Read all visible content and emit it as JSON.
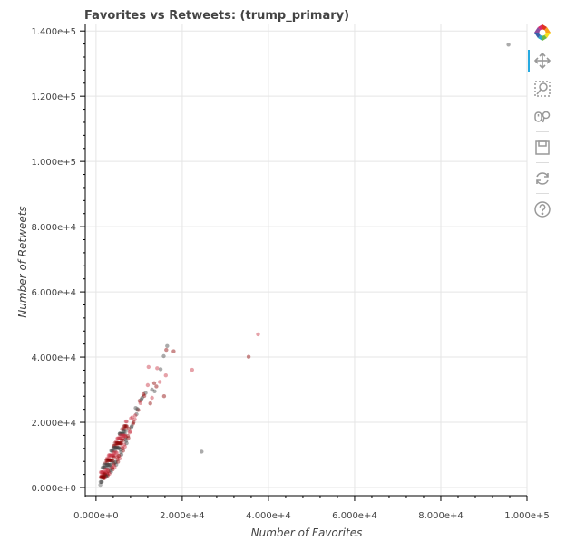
{
  "chart_data": {
    "type": "scatter",
    "title": "Favorites vs Retweets: (trump_primary)",
    "xlabel": "Number of Favorites",
    "ylabel": "Number of Retweets",
    "xlim": [
      -2500,
      100000
    ],
    "ylim": [
      -2500,
      142000
    ],
    "x_ticks": [
      0,
      20000,
      40000,
      60000,
      80000,
      100000
    ],
    "x_tick_labels": [
      "0.000e+0",
      "2.000e+4",
      "4.000e+4",
      "6.000e+4",
      "8.000e+4",
      "1.000e+5"
    ],
    "y_ticks": [
      0,
      20000,
      40000,
      60000,
      80000,
      100000,
      120000,
      140000
    ],
    "y_tick_labels": [
      "0.000e+0",
      "2.000e+4",
      "4.000e+4",
      "6.000e+4",
      "8.000e+4",
      "1.000e+5",
      "1.200e+5",
      "1.400e+5"
    ],
    "grid": true,
    "legend": "none",
    "point_colors": [
      "#444444",
      "#c83040",
      "#8b0000"
    ],
    "series": [
      {
        "x": [
          95700,
          37600,
          35400,
          24500,
          22300,
          18000,
          16500,
          16200,
          15800,
          15000,
          14200,
          13500,
          13000,
          12200,
          16300,
          15700,
          14800,
          14000,
          13600,
          13000,
          12600,
          11500,
          12000,
          11200,
          10700,
          10300,
          9800,
          9400,
          9000,
          8600,
          8200,
          7800,
          7400,
          7000,
          6600,
          6200,
          5800,
          5400,
          5000,
          4600,
          4200,
          3800,
          3400,
          3000,
          2600,
          2300,
          2000,
          1700,
          1400,
          1200,
          10100,
          9600,
          9100,
          8700,
          8300,
          7900,
          7500,
          7100,
          6700,
          6300,
          5900,
          5500,
          5100,
          4700,
          4300,
          3900,
          3500,
          3100,
          2700,
          2400,
          2100,
          1800,
          1500,
          1300,
          11000,
          10500,
          8100,
          6900,
          5700,
          4900,
          4100,
          3300,
          2500,
          1900,
          9200,
          8400,
          7600,
          6800,
          6000,
          5200,
          4400,
          3600,
          2800,
          2200,
          1600,
          1100
        ],
        "y": [
          135800,
          47000,
          40100,
          11000,
          36100,
          41800,
          43400,
          34400,
          28000,
          36300,
          36600,
          32000,
          30000,
          37000,
          42200,
          40300,
          32400,
          31000,
          29500,
          27500,
          25800,
          29000,
          31400,
          28100,
          27500,
          25900,
          23800,
          22500,
          20900,
          19600,
          18500,
          16900,
          15800,
          14300,
          13200,
          12000,
          10900,
          9800,
          8700,
          7800,
          6900,
          6000,
          5300,
          4600,
          4000,
          3600,
          3200,
          3000,
          3300,
          3500,
          26600,
          24100,
          22100,
          20000,
          18800,
          17200,
          15200,
          13600,
          12500,
          11300,
          10100,
          8900,
          7900,
          7000,
          6200,
          5600,
          4800,
          4200,
          3700,
          3300,
          3000,
          2800,
          3100,
          3400,
          28600,
          27000,
          21200,
          15500,
          11600,
          9300,
          7400,
          5900,
          4500,
          3800,
          24400,
          21500,
          18000,
          14800,
          12300,
          9700,
          7700,
          6300,
          5000,
          3900,
          3200,
          3100
        ]
      }
    ]
  },
  "toolbar": {
    "icons": [
      "bokeh-logo-icon",
      "pan-icon",
      "box-zoom-icon",
      "wheel-zoom-icon",
      "save-icon",
      "reset-icon",
      "help-icon"
    ]
  }
}
